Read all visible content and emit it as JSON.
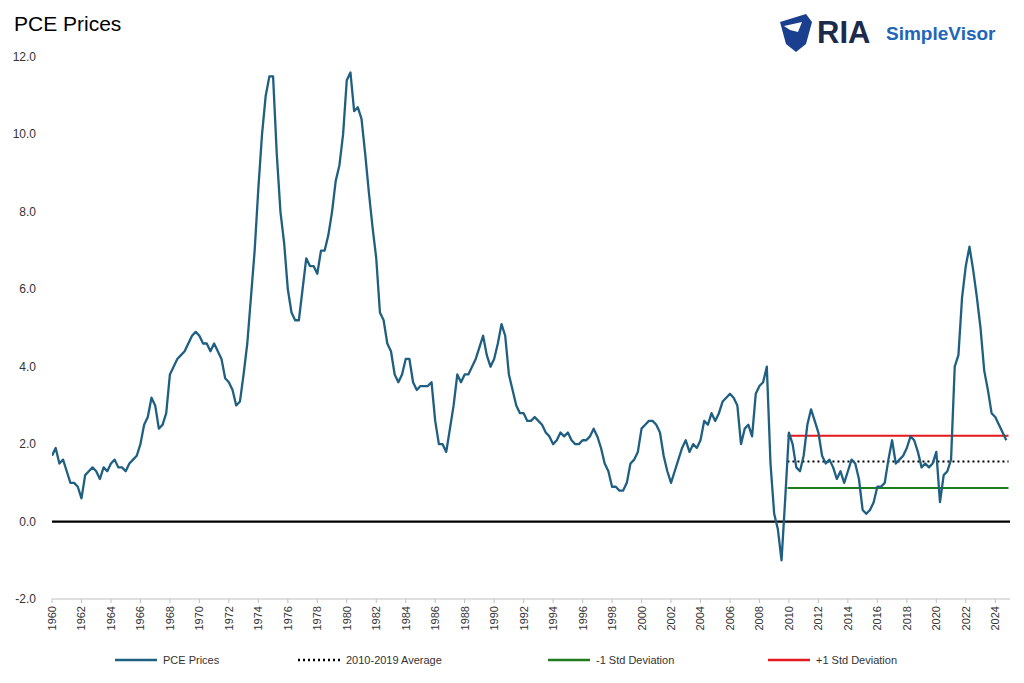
{
  "chart_data": {
    "type": "line",
    "title": "PCE Prices",
    "annotations": [
      "RIA",
      "SimpleVisor"
    ],
    "legend": "bottom",
    "grid": false,
    "xlim": [
      1960,
      2025
    ],
    "xticks": [
      1960,
      1962,
      1964,
      1966,
      1968,
      1970,
      1972,
      1974,
      1976,
      1978,
      1980,
      1982,
      1984,
      1986,
      1988,
      1990,
      1992,
      1994,
      1996,
      1998,
      2000,
      2002,
      2004,
      2006,
      2008,
      2010,
      2012,
      2014,
      2016,
      2018,
      2020,
      2022,
      2024
    ],
    "ylim": [
      -2,
      12
    ],
    "yticks": [
      {
        "value": -2,
        "label": "-2.0"
      },
      {
        "value": 0,
        "label": "0.0"
      },
      {
        "value": 2,
        "label": "2.0"
      },
      {
        "value": 4,
        "label": "4.0"
      },
      {
        "value": 6,
        "label": "6.0"
      },
      {
        "value": 8,
        "label": "8.0"
      },
      {
        "value": 10,
        "label": "10.0"
      },
      {
        "value": 12,
        "label": "12.0"
      }
    ],
    "x": [
      1960,
      1960.25,
      1960.5,
      1960.75,
      1961,
      1961.25,
      1961.5,
      1961.75,
      1962,
      1962.25,
      1962.5,
      1962.75,
      1963,
      1963.25,
      1963.5,
      1963.75,
      1964,
      1964.25,
      1964.5,
      1964.75,
      1965,
      1965.25,
      1965.5,
      1965.75,
      1966,
      1966.25,
      1966.5,
      1966.75,
      1967,
      1967.25,
      1967.5,
      1967.75,
      1968,
      1968.25,
      1968.5,
      1968.75,
      1969,
      1969.25,
      1969.5,
      1969.75,
      1970,
      1970.25,
      1970.5,
      1970.75,
      1971,
      1971.25,
      1971.5,
      1971.75,
      1972,
      1972.25,
      1972.5,
      1972.75,
      1973,
      1973.25,
      1973.5,
      1973.75,
      1974,
      1974.25,
      1974.5,
      1974.75,
      1975,
      1975.25,
      1975.5,
      1975.75,
      1976,
      1976.25,
      1976.5,
      1976.75,
      1977,
      1977.25,
      1977.5,
      1977.75,
      1978,
      1978.25,
      1978.5,
      1978.75,
      1979,
      1979.25,
      1979.5,
      1979.75,
      1980,
      1980.25,
      1980.5,
      1980.75,
      1981,
      1981.25,
      1981.5,
      1981.75,
      1982,
      1982.25,
      1982.5,
      1982.75,
      1983,
      1983.25,
      1983.5,
      1983.75,
      1984,
      1984.25,
      1984.5,
      1984.75,
      1985,
      1985.25,
      1985.5,
      1985.75,
      1986,
      1986.25,
      1986.5,
      1986.75,
      1987,
      1987.25,
      1987.5,
      1987.75,
      1988,
      1988.25,
      1988.5,
      1988.75,
      1989,
      1989.25,
      1989.5,
      1989.75,
      1990,
      1990.25,
      1990.5,
      1990.75,
      1991,
      1991.25,
      1991.5,
      1991.75,
      1992,
      1992.25,
      1992.5,
      1992.75,
      1993,
      1993.25,
      1993.5,
      1993.75,
      1994,
      1994.25,
      1994.5,
      1994.75,
      1995,
      1995.25,
      1995.5,
      1995.75,
      1996,
      1996.25,
      1996.5,
      1996.75,
      1997,
      1997.25,
      1997.5,
      1997.75,
      1998,
      1998.25,
      1998.5,
      1998.75,
      1999,
      1999.25,
      1999.5,
      1999.75,
      2000,
      2000.25,
      2000.5,
      2000.75,
      2001,
      2001.25,
      2001.5,
      2001.75,
      2002,
      2002.25,
      2002.5,
      2002.75,
      2003,
      2003.25,
      2003.5,
      2003.75,
      2004,
      2004.25,
      2004.5,
      2004.75,
      2005,
      2005.25,
      2005.5,
      2005.75,
      2006,
      2006.25,
      2006.5,
      2006.75,
      2007,
      2007.25,
      2007.5,
      2007.75,
      2008,
      2008.25,
      2008.5,
      2008.75,
      2009,
      2009.25,
      2009.5,
      2009.75,
      2010,
      2010.25,
      2010.5,
      2010.75,
      2011,
      2011.25,
      2011.5,
      2011.75,
      2012,
      2012.25,
      2012.5,
      2012.75,
      2013,
      2013.25,
      2013.5,
      2013.75,
      2014,
      2014.25,
      2014.5,
      2014.75,
      2015,
      2015.25,
      2015.5,
      2015.75,
      2016,
      2016.25,
      2016.5,
      2016.75,
      2017,
      2017.25,
      2017.5,
      2017.75,
      2018,
      2018.25,
      2018.5,
      2018.75,
      2019,
      2019.25,
      2019.5,
      2019.75,
      2020,
      2020.25,
      2020.5,
      2020.75,
      2021,
      2021.25,
      2021.5,
      2021.75,
      2022,
      2022.25,
      2022.5,
      2022.75,
      2023,
      2023.25,
      2023.5,
      2023.75,
      2024,
      2024.25,
      2024.5,
      2024.75
    ],
    "series": [
      {
        "name": "PCE Prices",
        "color": "#1f5f82",
        "type": "line",
        "line_style": "solid",
        "values": [
          1.7,
          1.9,
          1.5,
          1.6,
          1.3,
          1.0,
          1.0,
          0.9,
          0.6,
          1.2,
          1.3,
          1.4,
          1.3,
          1.1,
          1.4,
          1.3,
          1.5,
          1.6,
          1.4,
          1.4,
          1.3,
          1.5,
          1.6,
          1.7,
          2.0,
          2.5,
          2.7,
          3.2,
          3.0,
          2.4,
          2.5,
          2.8,
          3.8,
          4.0,
          4.2,
          4.3,
          4.4,
          4.6,
          4.8,
          4.9,
          4.8,
          4.6,
          4.6,
          4.4,
          4.6,
          4.4,
          4.2,
          3.7,
          3.6,
          3.4,
          3.0,
          3.1,
          3.8,
          4.6,
          5.8,
          7.0,
          8.6,
          10.0,
          11.0,
          11.5,
          11.5,
          9.5,
          8.0,
          7.2,
          6.0,
          5.4,
          5.2,
          5.2,
          6.0,
          6.8,
          6.6,
          6.6,
          6.4,
          7.0,
          7.0,
          7.4,
          8.0,
          8.8,
          9.2,
          10.0,
          11.4,
          11.6,
          10.6,
          10.7,
          10.4,
          9.5,
          8.5,
          7.6,
          6.8,
          5.4,
          5.2,
          4.6,
          4.4,
          3.8,
          3.6,
          3.8,
          4.2,
          4.2,
          3.6,
          3.4,
          3.5,
          3.5,
          3.5,
          3.6,
          2.6,
          2.0,
          2.0,
          1.8,
          2.4,
          3.0,
          3.8,
          3.6,
          3.8,
          3.8,
          4.0,
          4.2,
          4.5,
          4.8,
          4.3,
          4.0,
          4.2,
          4.6,
          5.1,
          4.8,
          3.8,
          3.4,
          3.0,
          2.8,
          2.8,
          2.6,
          2.6,
          2.7,
          2.6,
          2.5,
          2.3,
          2.2,
          2.0,
          2.1,
          2.3,
          2.2,
          2.3,
          2.1,
          2.0,
          2.0,
          2.1,
          2.1,
          2.2,
          2.4,
          2.2,
          1.9,
          1.5,
          1.3,
          0.9,
          0.9,
          0.8,
          0.8,
          1.0,
          1.5,
          1.6,
          1.8,
          2.4,
          2.5,
          2.6,
          2.6,
          2.5,
          2.3,
          1.7,
          1.3,
          1.0,
          1.3,
          1.6,
          1.9,
          2.1,
          1.8,
          2.0,
          1.9,
          2.1,
          2.6,
          2.5,
          2.8,
          2.6,
          2.8,
          3.1,
          3.2,
          3.3,
          3.2,
          3.0,
          2.0,
          2.4,
          2.5,
          2.2,
          3.3,
          3.5,
          3.6,
          4.0,
          1.5,
          0.2,
          -0.2,
          -1.0,
          0.6,
          2.3,
          2.0,
          1.4,
          1.3,
          1.7,
          2.5,
          2.9,
          2.6,
          2.3,
          1.7,
          1.5,
          1.6,
          1.4,
          1.1,
          1.3,
          1.0,
          1.3,
          1.6,
          1.5,
          1.1,
          0.3,
          0.2,
          0.3,
          0.5,
          0.9,
          0.9,
          1.0,
          1.6,
          2.1,
          1.5,
          1.6,
          1.7,
          1.9,
          2.2,
          2.1,
          1.8,
          1.4,
          1.5,
          1.4,
          1.5,
          1.8,
          0.5,
          1.2,
          1.3,
          1.6,
          4.0,
          4.3,
          5.8,
          6.6,
          7.1,
          6.5,
          5.8,
          5.0,
          3.9,
          3.4,
          2.8,
          2.7,
          2.5,
          2.3,
          2.1
        ]
      },
      {
        "name": "2010-2019 Average",
        "color": "#000000",
        "type": "line",
        "line_style": "dotted",
        "x": [
          2009.9,
          2024.9
        ],
        "values": [
          1.55,
          1.55
        ]
      },
      {
        "name": "-1 Std Deviation",
        "color": "#1e7b1e",
        "type": "line",
        "line_style": "solid",
        "x": [
          2009.9,
          2024.9
        ],
        "values": [
          0.87,
          0.87
        ]
      },
      {
        "name": "+1 Std Deviation",
        "color": "#e3191c",
        "type": "line",
        "line_style": "solid",
        "x": [
          2009.9,
          2024.9
        ],
        "values": [
          2.22,
          2.22
        ]
      }
    ]
  }
}
